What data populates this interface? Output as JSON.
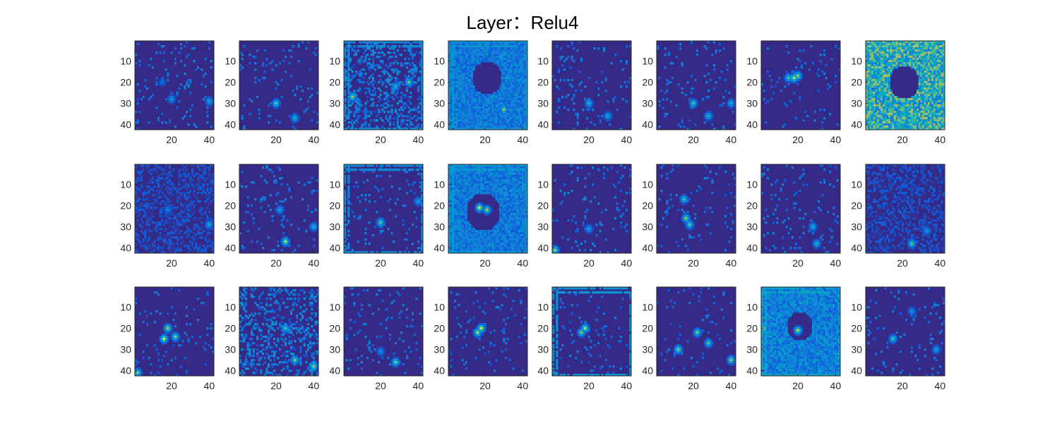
{
  "figure": {
    "title": "Layer：Relu4"
  },
  "colormap": {
    "name": "parula",
    "low": "#3b2fa0",
    "mid": "#1aa8d9",
    "high": "#f6e22a"
  },
  "chart_data": {
    "type": "heatmap",
    "title": "Layer：Relu4",
    "rows": 3,
    "cols": 8,
    "image_size": [
      42,
      42
    ],
    "xlim": [
      1,
      42
    ],
    "ylim": [
      1,
      42
    ],
    "y_reversed": true,
    "xticks": [
      20,
      40
    ],
    "yticks": [
      10,
      20,
      30,
      40
    ],
    "xtick_labels": [
      "20",
      "40"
    ],
    "ytick_labels": [
      "10",
      "20",
      "30",
      "40"
    ],
    "panels": [
      {
        "background": 0.05,
        "pattern": "sparse-dots",
        "features": [
          [
            20,
            28,
            0.45
          ],
          [
            40,
            29,
            0.5
          ],
          [
            15,
            20,
            0.25
          ]
        ]
      },
      {
        "background": 0.03,
        "pattern": "sparse-dots",
        "features": [
          [
            20,
            30,
            0.75
          ],
          [
            30,
            37,
            0.6
          ]
        ]
      },
      {
        "background": 0.15,
        "pattern": "ring-texture",
        "frame": 0.35,
        "features": [
          [
            35,
            20,
            0.8
          ],
          [
            5,
            27,
            0.85
          ],
          [
            28,
            22,
            0.6
          ]
        ]
      },
      {
        "background": 0.25,
        "pattern": "dense-texture",
        "frame": 0.4,
        "hole": [
          20,
          17,
          8
        ],
        "features": [
          [
            30,
            33,
            0.85
          ]
        ]
      },
      {
        "background": 0.03,
        "pattern": "sparse-dots",
        "features": [
          [
            20,
            30,
            0.6
          ],
          [
            30,
            36,
            0.55
          ]
        ]
      },
      {
        "background": 0.03,
        "pattern": "sparse-dots",
        "features": [
          [
            20,
            30,
            0.7
          ],
          [
            28,
            36,
            0.6
          ],
          [
            40,
            30,
            0.55
          ]
        ]
      },
      {
        "background": 0.05,
        "pattern": "arc",
        "features": [
          [
            18,
            18,
            0.95
          ],
          [
            20,
            17,
            0.85
          ],
          [
            15,
            18,
            0.7
          ]
        ]
      },
      {
        "background": 0.5,
        "pattern": "dense-texture",
        "frame": 0.55,
        "hole": [
          20,
          19,
          8
        ],
        "features": [
          [
            35,
            41,
            0.85
          ]
        ]
      },
      {
        "background": 0.12,
        "pattern": "faint-texture",
        "features": [
          [
            18,
            22,
            0.35
          ],
          [
            40,
            29,
            0.55
          ]
        ]
      },
      {
        "background": 0.03,
        "pattern": "sparse-dots",
        "features": [
          [
            25,
            37,
            0.95
          ],
          [
            40,
            30,
            0.6
          ],
          [
            22,
            22,
            0.5
          ]
        ]
      },
      {
        "background": 0.05,
        "pattern": "sparse-dots",
        "frame": 0.35,
        "features": [
          [
            20,
            28,
            0.75
          ],
          [
            40,
            18,
            0.5
          ]
        ]
      },
      {
        "background": 0.25,
        "pattern": "dense-texture",
        "frame": 0.45,
        "hole": [
          18,
          22,
          9
        ],
        "features": [
          [
            17,
            21,
            1.0
          ],
          [
            21,
            22,
            0.9
          ]
        ]
      },
      {
        "background": 0.03,
        "pattern": "sparse-dots",
        "features": [
          [
            20,
            31,
            0.5
          ],
          [
            2,
            41,
            0.9
          ]
        ]
      },
      {
        "background": 0.03,
        "pattern": "arc",
        "features": [
          [
            15,
            17,
            0.7
          ],
          [
            16,
            26,
            0.85
          ],
          [
            18,
            29,
            0.75
          ]
        ]
      },
      {
        "background": 0.03,
        "pattern": "sparse-dots",
        "features": [
          [
            28,
            30,
            0.55
          ],
          [
            30,
            38,
            0.6
          ]
        ]
      },
      {
        "background": 0.12,
        "pattern": "faint-texture",
        "features": [
          [
            25,
            38,
            0.75
          ],
          [
            33,
            32,
            0.45
          ]
        ]
      },
      {
        "background": 0.04,
        "pattern": "ring",
        "features": [
          [
            18,
            20,
            0.9
          ],
          [
            16,
            25,
            1.0
          ],
          [
            22,
            24,
            0.85
          ],
          [
            2,
            41,
            0.8
          ]
        ]
      },
      {
        "background": 0.08,
        "pattern": "ring-texture",
        "features": [
          [
            25,
            20,
            0.7
          ],
          [
            30,
            35,
            0.8
          ],
          [
            40,
            38,
            0.9
          ]
        ]
      },
      {
        "background": 0.03,
        "pattern": "sparse-dots",
        "features": [
          [
            28,
            36,
            0.8
          ],
          [
            20,
            31,
            0.4
          ]
        ]
      },
      {
        "background": 0.15,
        "pattern": "blob",
        "features": [
          [
            18,
            20,
            1.0
          ],
          [
            16,
            22,
            0.95
          ]
        ]
      },
      {
        "background": 0.05,
        "pattern": "blob",
        "frame": 0.4,
        "features": [
          [
            18,
            20,
            0.95
          ],
          [
            16,
            22,
            0.8
          ]
        ]
      },
      {
        "background": 0.04,
        "pattern": "ring",
        "features": [
          [
            22,
            22,
            0.8
          ],
          [
            12,
            30,
            0.85
          ],
          [
            28,
            27,
            0.75
          ],
          [
            40,
            35,
            0.85
          ]
        ]
      },
      {
        "background": 0.28,
        "pattern": "dense-texture",
        "frame": 0.5,
        "hole": [
          20,
          18,
          7
        ],
        "features": [
          [
            20,
            21,
            0.95
          ],
          [
            2,
            20,
            0.75
          ]
        ]
      },
      {
        "background": 0.04,
        "pattern": "sparse-dots",
        "features": [
          [
            15,
            25,
            0.7
          ],
          [
            38,
            30,
            0.5
          ],
          [
            25,
            12,
            0.4
          ]
        ]
      }
    ]
  }
}
